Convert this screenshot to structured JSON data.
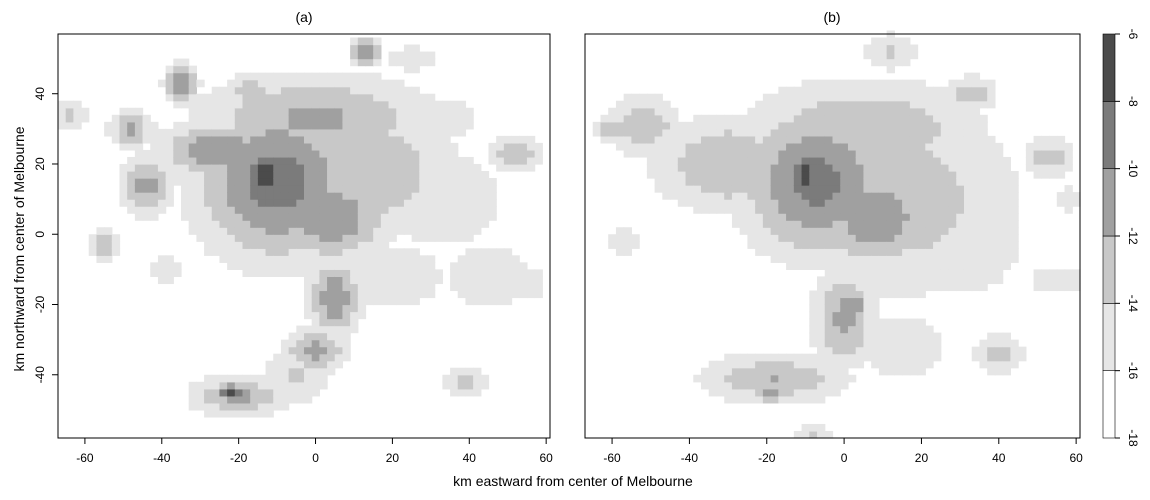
{
  "chart_data": [
    {
      "type": "heatmap",
      "title": "(a)",
      "xlabel": "km eastward from center of Melbourne",
      "ylabel": "km northward from center of Melbourne",
      "xlim": [
        -67,
        61
      ],
      "ylim": [
        -58,
        57
      ],
      "xticks": [
        -60,
        -40,
        -20,
        0,
        20,
        40,
        60
      ],
      "yticks": [
        -40,
        -20,
        0,
        20,
        40
      ],
      "grid": false,
      "surface": {
        "background": -18,
        "blobs": [
          {
            "x": -10,
            "y": 15,
            "sx": 15,
            "sy": 16,
            "v": -9.0
          },
          {
            "x": -13,
            "y": 17,
            "sx": 4,
            "sy": 5,
            "v": -6.2
          },
          {
            "x": 4,
            "y": 5,
            "sx": 11,
            "sy": 9,
            "v": -10.3
          },
          {
            "x": -25,
            "y": 24,
            "sx": 11,
            "sy": 6,
            "v": -10.3
          },
          {
            "x": 12,
            "y": 18,
            "sx": 18,
            "sy": 14,
            "v": -12.2
          },
          {
            "x": 0,
            "y": 33,
            "sx": 22,
            "sy": 9,
            "v": -11.6
          },
          {
            "x": 33,
            "y": 10,
            "sx": 15,
            "sy": 13,
            "v": -14.8
          },
          {
            "x": 45,
            "y": -12,
            "sx": 12,
            "sy": 10,
            "v": -15.2
          },
          {
            "x": 20,
            "y": -12,
            "sx": 13,
            "sy": 9,
            "v": -14.8
          },
          {
            "x": 5,
            "y": -18,
            "sx": 5,
            "sy": 8,
            "v": -10.4
          },
          {
            "x": 0,
            "y": -33,
            "sx": 6,
            "sy": 5,
            "v": -11.4
          },
          {
            "x": -5,
            "y": -40,
            "sx": 7,
            "sy": 6,
            "v": -13.6
          },
          {
            "x": -20,
            "y": -46,
            "sx": 9,
            "sy": 4,
            "v": -11.4
          },
          {
            "x": -22,
            "y": -45,
            "sx": 3,
            "sy": 2,
            "v": -7.8
          },
          {
            "x": -44,
            "y": 14,
            "sx": 5,
            "sy": 6,
            "v": -11.3
          },
          {
            "x": -48,
            "y": 30,
            "sx": 4,
            "sy": 4,
            "v": -11.3
          },
          {
            "x": -64,
            "y": 34,
            "sx": 4,
            "sy": 3,
            "v": -13.5
          },
          {
            "x": -35,
            "y": 43,
            "sx": 3,
            "sy": 4,
            "v": -9.8
          },
          {
            "x": -17,
            "y": 41,
            "sx": 4,
            "sy": 4,
            "v": -12.6
          },
          {
            "x": 13,
            "y": 52,
            "sx": 3,
            "sy": 3,
            "v": -10.6
          },
          {
            "x": 25,
            "y": 50,
            "sx": 6,
            "sy": 3,
            "v": -14.4
          },
          {
            "x": 36,
            "y": 33,
            "sx": 5,
            "sy": 4,
            "v": -14.3
          },
          {
            "x": 52,
            "y": 23,
            "sx": 5,
            "sy": 4,
            "v": -12.4
          },
          {
            "x": 55,
            "y": -14,
            "sx": 5,
            "sy": 4,
            "v": -14.6
          },
          {
            "x": 39,
            "y": -42,
            "sx": 4,
            "sy": 3,
            "v": -13.2
          },
          {
            "x": -55,
            "y": -3,
            "sx": 3,
            "sy": 3,
            "v": -12.2
          },
          {
            "x": -39,
            "y": -10,
            "sx": 6,
            "sy": 5,
            "v": -15.5
          }
        ]
      }
    },
    {
      "type": "heatmap",
      "title": "(b)",
      "xlabel": "km eastward from center of Melbourne",
      "ylabel": "",
      "xlim": [
        -67,
        61
      ],
      "ylim": [
        -58,
        57
      ],
      "xticks": [
        -60,
        -40,
        -20,
        0,
        20,
        40,
        60
      ],
      "yticks": [],
      "grid": false,
      "surface": {
        "background": -18,
        "blobs": [
          {
            "x": -7,
            "y": 15,
            "sx": 14,
            "sy": 15,
            "v": -9.2
          },
          {
            "x": -10,
            "y": 17,
            "sx": 3,
            "sy": 5,
            "v": -6.4
          },
          {
            "x": 8,
            "y": 5,
            "sx": 12,
            "sy": 10,
            "v": -10.4
          },
          {
            "x": 15,
            "y": 10,
            "sx": 22,
            "sy": 20,
            "v": -12.8
          },
          {
            "x": -30,
            "y": 20,
            "sx": 14,
            "sy": 10,
            "v": -12.0
          },
          {
            "x": 5,
            "y": 30,
            "sx": 22,
            "sy": 10,
            "v": -12.0
          },
          {
            "x": 32,
            "y": 0,
            "sx": 15,
            "sy": 18,
            "v": -15.0
          },
          {
            "x": 0,
            "y": -24,
            "sx": 6,
            "sy": 10,
            "v": -11.6
          },
          {
            "x": 2,
            "y": -20,
            "sx": 3,
            "sy": 4,
            "v": -10.2
          },
          {
            "x": -18,
            "y": -41,
            "sx": 14,
            "sy": 5,
            "v": -12.0
          },
          {
            "x": -19,
            "y": -45,
            "sx": 3,
            "sy": 2,
            "v": -9.8
          },
          {
            "x": 15,
            "y": -32,
            "sx": 12,
            "sy": 10,
            "v": -15.0
          },
          {
            "x": -52,
            "y": 31,
            "sx": 7,
            "sy": 6,
            "v": -12.2
          },
          {
            "x": -60,
            "y": 30,
            "sx": 3,
            "sy": 3,
            "v": -12.6
          },
          {
            "x": -57,
            "y": -2,
            "sx": 3,
            "sy": 3,
            "v": -13.6
          },
          {
            "x": 53,
            "y": 22,
            "sx": 5,
            "sy": 4,
            "v": -12.6
          },
          {
            "x": 55,
            "y": -13,
            "sx": 6,
            "sy": 4,
            "v": -14.7
          },
          {
            "x": 40,
            "y": -34,
            "sx": 5,
            "sy": 4,
            "v": -12.8
          },
          {
            "x": 12,
            "y": 52,
            "sx": 5,
            "sy": 4,
            "v": -13.6
          },
          {
            "x": 33,
            "y": 40,
            "sx": 5,
            "sy": 4,
            "v": -13.0
          },
          {
            "x": -8,
            "y": -58,
            "sx": 4,
            "sy": 3,
            "v": -13.6
          },
          {
            "x": 58,
            "y": 10,
            "sx": 4,
            "sy": 3,
            "v": -14.6
          }
        ]
      }
    }
  ],
  "colorbar": {
    "breaks": [
      -18,
      -16,
      -14,
      -12,
      -10,
      -8,
      -6
    ],
    "tick_labels": [
      "-18",
      "-16",
      "-14",
      "-12",
      "-10",
      "-8",
      "-6"
    ],
    "colors": [
      "#ffffff",
      "#e6e6e6",
      "#c8c8c8",
      "#a0a0a0",
      "#7b7b7b",
      "#4b4b4b",
      "#000000"
    ]
  }
}
